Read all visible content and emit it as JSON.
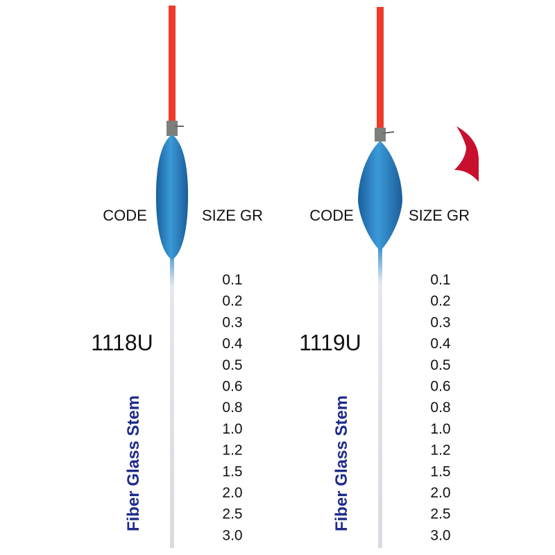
{
  "floats": [
    {
      "code_label": "CODE",
      "size_label": "SIZE GR",
      "code": "1118U",
      "stem_label": "Fiber Glass Stem",
      "sizes": [
        "0.1",
        "0.2",
        "0.3",
        "0.4",
        "0.5",
        "0.6",
        "0.8",
        "1.0",
        "1.2",
        "1.5",
        "2.0",
        "2.5",
        "3.0"
      ]
    },
    {
      "code_label": "CODE",
      "size_label": "SIZE GR",
      "code": "1119U",
      "stem_label": "Fiber Glass Stem",
      "sizes": [
        "0.1",
        "0.2",
        "0.3",
        "0.4",
        "0.5",
        "0.6",
        "0.8",
        "1.0",
        "1.2",
        "1.5",
        "2.0",
        "2.5",
        "3.0"
      ]
    }
  ]
}
